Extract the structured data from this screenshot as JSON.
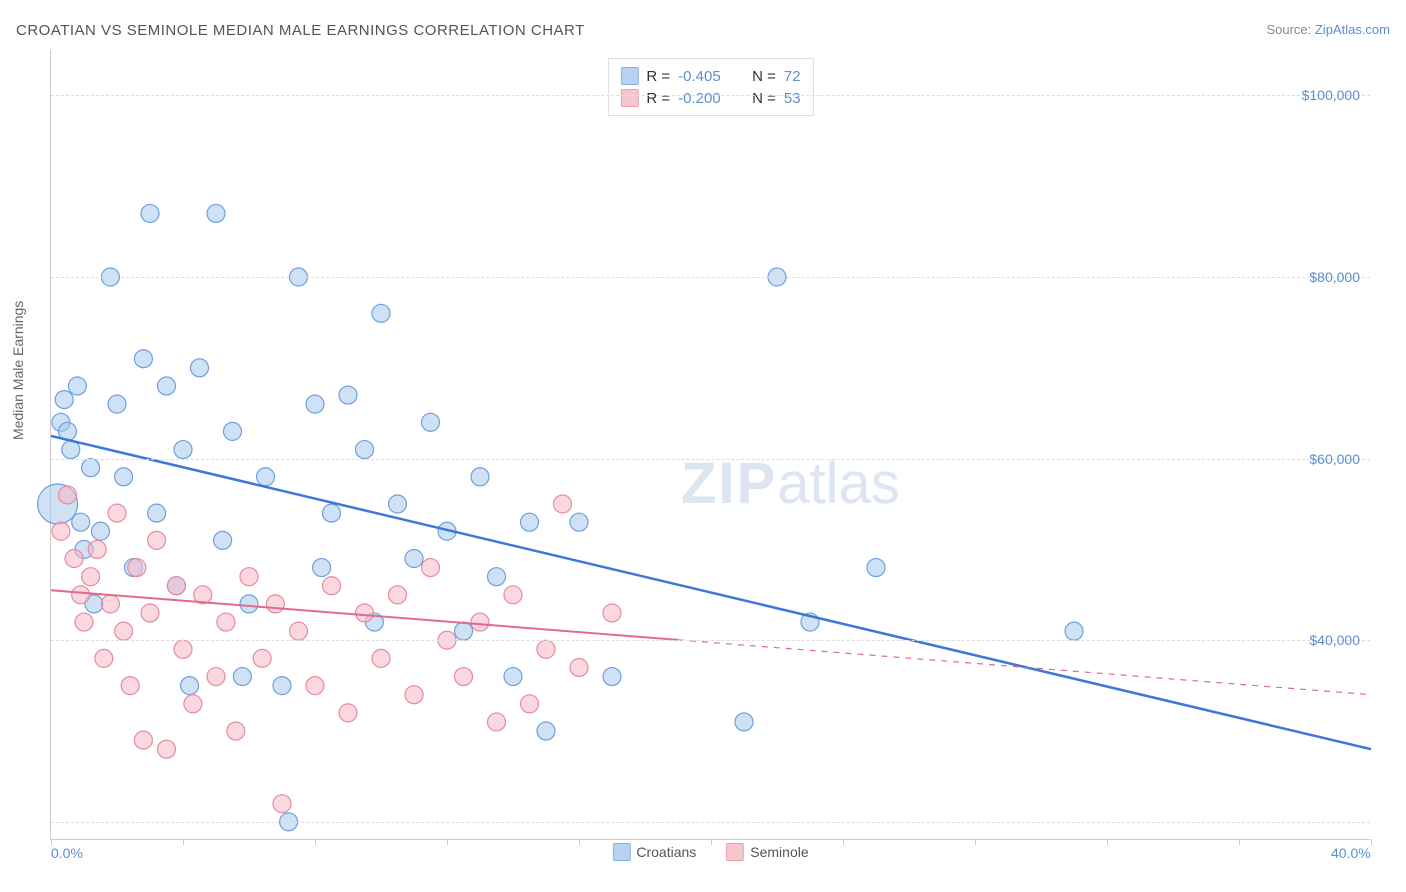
{
  "title": "CROATIAN VS SEMINOLE MEDIAN MALE EARNINGS CORRELATION CHART",
  "source_prefix": "Source: ",
  "source_link": "ZipAtlas.com",
  "ylabel": "Median Male Earnings",
  "watermark_zip": "ZIP",
  "watermark_atlas": "atlas",
  "chart": {
    "type": "scatter",
    "xlim": [
      0,
      40
    ],
    "ylim": [
      18000,
      105000
    ],
    "x_ticks": [
      0,
      4,
      8,
      12,
      16,
      20,
      24,
      28,
      32,
      36,
      40
    ],
    "x_tick_labels": {
      "0": "0.0%",
      "40": "40.0%"
    },
    "y_gridlines": [
      20000,
      40000,
      60000,
      80000,
      100000
    ],
    "y_tick_labels": {
      "40000": "$40,000",
      "60000": "$60,000",
      "80000": "$80,000",
      "100000": "$100,000"
    },
    "background_color": "#ffffff",
    "grid_color": "#dddddd",
    "axis_color": "#cccccc",
    "label_fontsize": 14,
    "title_fontsize": 15,
    "series": [
      {
        "name": "Croatians",
        "fill_color": "#a8c8ec",
        "stroke_color": "#6ea0de",
        "fill_opacity": 0.55,
        "marker_radius": 9,
        "R": "-0.405",
        "N": "72",
        "trend": {
          "x1": 0,
          "y1": 62500,
          "x2": 40,
          "y2": 28000,
          "solid_until_x": 40,
          "color": "#3b78d8",
          "width": 2.5
        },
        "points": [
          {
            "x": 0.2,
            "y": 55000,
            "r": 20
          },
          {
            "x": 0.3,
            "y": 64000
          },
          {
            "x": 0.4,
            "y": 66500
          },
          {
            "x": 0.5,
            "y": 63000
          },
          {
            "x": 0.6,
            "y": 61000
          },
          {
            "x": 0.8,
            "y": 68000
          },
          {
            "x": 0.9,
            "y": 53000
          },
          {
            "x": 1.0,
            "y": 50000
          },
          {
            "x": 1.2,
            "y": 59000
          },
          {
            "x": 1.3,
            "y": 44000
          },
          {
            "x": 1.5,
            "y": 52000
          },
          {
            "x": 1.8,
            "y": 80000
          },
          {
            "x": 2.0,
            "y": 66000
          },
          {
            "x": 2.2,
            "y": 58000
          },
          {
            "x": 2.5,
            "y": 48000
          },
          {
            "x": 2.8,
            "y": 71000
          },
          {
            "x": 3.0,
            "y": 87000
          },
          {
            "x": 3.2,
            "y": 54000
          },
          {
            "x": 3.5,
            "y": 68000
          },
          {
            "x": 3.8,
            "y": 46000
          },
          {
            "x": 4.0,
            "y": 61000
          },
          {
            "x": 4.2,
            "y": 35000
          },
          {
            "x": 4.5,
            "y": 70000
          },
          {
            "x": 5.0,
            "y": 87000
          },
          {
            "x": 5.2,
            "y": 51000
          },
          {
            "x": 5.5,
            "y": 63000
          },
          {
            "x": 5.8,
            "y": 36000
          },
          {
            "x": 6.0,
            "y": 44000
          },
          {
            "x": 6.5,
            "y": 58000
          },
          {
            "x": 7.0,
            "y": 35000
          },
          {
            "x": 7.2,
            "y": 20000
          },
          {
            "x": 7.5,
            "y": 80000
          },
          {
            "x": 8.0,
            "y": 66000
          },
          {
            "x": 8.2,
            "y": 48000
          },
          {
            "x": 8.5,
            "y": 54000
          },
          {
            "x": 9.0,
            "y": 67000
          },
          {
            "x": 9.5,
            "y": 61000
          },
          {
            "x": 9.8,
            "y": 42000
          },
          {
            "x": 10.0,
            "y": 76000
          },
          {
            "x": 10.5,
            "y": 55000
          },
          {
            "x": 11.0,
            "y": 49000
          },
          {
            "x": 11.5,
            "y": 64000
          },
          {
            "x": 12.0,
            "y": 52000
          },
          {
            "x": 12.5,
            "y": 41000
          },
          {
            "x": 13.0,
            "y": 58000
          },
          {
            "x": 13.5,
            "y": 47000
          },
          {
            "x": 14.0,
            "y": 36000
          },
          {
            "x": 14.5,
            "y": 53000
          },
          {
            "x": 15.0,
            "y": 30000
          },
          {
            "x": 16.0,
            "y": 53000
          },
          {
            "x": 17.0,
            "y": 36000
          },
          {
            "x": 21.0,
            "y": 31000
          },
          {
            "x": 22.0,
            "y": 80000
          },
          {
            "x": 23.0,
            "y": 42000
          },
          {
            "x": 25.0,
            "y": 48000
          },
          {
            "x": 31.0,
            "y": 41000
          }
        ]
      },
      {
        "name": "Seminole",
        "fill_color": "#f5b8c4",
        "stroke_color": "#e88aa0",
        "fill_opacity": 0.55,
        "marker_radius": 9,
        "R": "-0.200",
        "N": "53",
        "trend": {
          "x1": 0,
          "y1": 45500,
          "x2": 40,
          "y2": 34000,
          "solid_until_x": 19,
          "color": "#e26a8a",
          "width": 2
        },
        "points": [
          {
            "x": 0.3,
            "y": 52000
          },
          {
            "x": 0.5,
            "y": 56000
          },
          {
            "x": 0.7,
            "y": 49000
          },
          {
            "x": 0.9,
            "y": 45000
          },
          {
            "x": 1.0,
            "y": 42000
          },
          {
            "x": 1.2,
            "y": 47000
          },
          {
            "x": 1.4,
            "y": 50000
          },
          {
            "x": 1.6,
            "y": 38000
          },
          {
            "x": 1.8,
            "y": 44000
          },
          {
            "x": 2.0,
            "y": 54000
          },
          {
            "x": 2.2,
            "y": 41000
          },
          {
            "x": 2.4,
            "y": 35000
          },
          {
            "x": 2.6,
            "y": 48000
          },
          {
            "x": 2.8,
            "y": 29000
          },
          {
            "x": 3.0,
            "y": 43000
          },
          {
            "x": 3.2,
            "y": 51000
          },
          {
            "x": 3.5,
            "y": 28000
          },
          {
            "x": 3.8,
            "y": 46000
          },
          {
            "x": 4.0,
            "y": 39000
          },
          {
            "x": 4.3,
            "y": 33000
          },
          {
            "x": 4.6,
            "y": 45000
          },
          {
            "x": 5.0,
            "y": 36000
          },
          {
            "x": 5.3,
            "y": 42000
          },
          {
            "x": 5.6,
            "y": 30000
          },
          {
            "x": 6.0,
            "y": 47000
          },
          {
            "x": 6.4,
            "y": 38000
          },
          {
            "x": 6.8,
            "y": 44000
          },
          {
            "x": 7.0,
            "y": 22000
          },
          {
            "x": 7.5,
            "y": 41000
          },
          {
            "x": 8.0,
            "y": 35000
          },
          {
            "x": 8.5,
            "y": 46000
          },
          {
            "x": 9.0,
            "y": 32000
          },
          {
            "x": 9.5,
            "y": 43000
          },
          {
            "x": 10.0,
            "y": 38000
          },
          {
            "x": 10.5,
            "y": 45000
          },
          {
            "x": 11.0,
            "y": 34000
          },
          {
            "x": 11.5,
            "y": 48000
          },
          {
            "x": 12.0,
            "y": 40000
          },
          {
            "x": 12.5,
            "y": 36000
          },
          {
            "x": 13.0,
            "y": 42000
          },
          {
            "x": 13.5,
            "y": 31000
          },
          {
            "x": 14.0,
            "y": 45000
          },
          {
            "x": 14.5,
            "y": 33000
          },
          {
            "x": 15.0,
            "y": 39000
          },
          {
            "x": 15.5,
            "y": 55000
          },
          {
            "x": 16.0,
            "y": 37000
          },
          {
            "x": 17.0,
            "y": 43000
          }
        ]
      }
    ]
  }
}
